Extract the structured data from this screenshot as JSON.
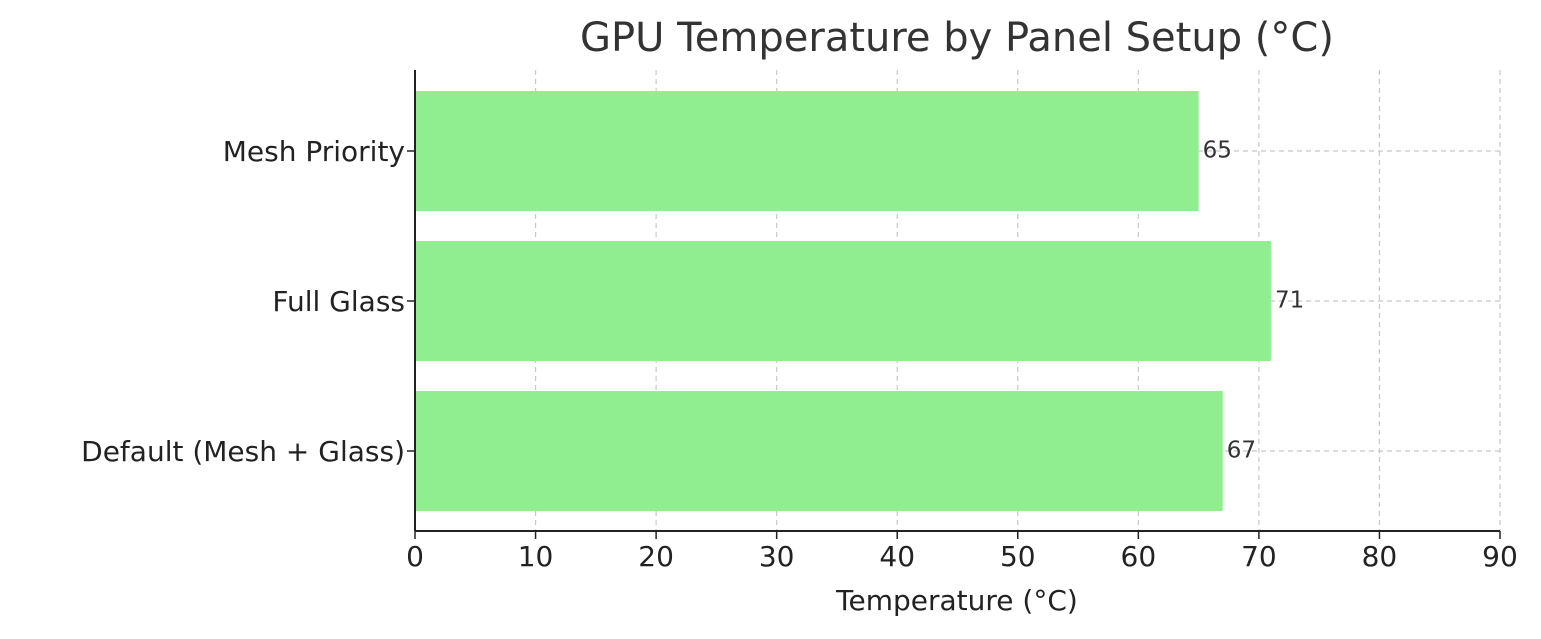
{
  "chart_data": {
    "type": "barh",
    "title": "GPU Temperature by Panel Setup (°C)",
    "x_label": "Temperature (°C)",
    "categories": [
      "Default (Mesh + Glass)",
      "Full Glass",
      "Mesh Priority"
    ],
    "values": [
      67,
      71,
      65
    ],
    "color": "#90ee90",
    "xlim": [
      0,
      90
    ],
    "xticks": [
      0,
      10,
      20,
      30,
      40,
      50,
      60,
      70,
      80,
      90
    ],
    "grid": true
  }
}
